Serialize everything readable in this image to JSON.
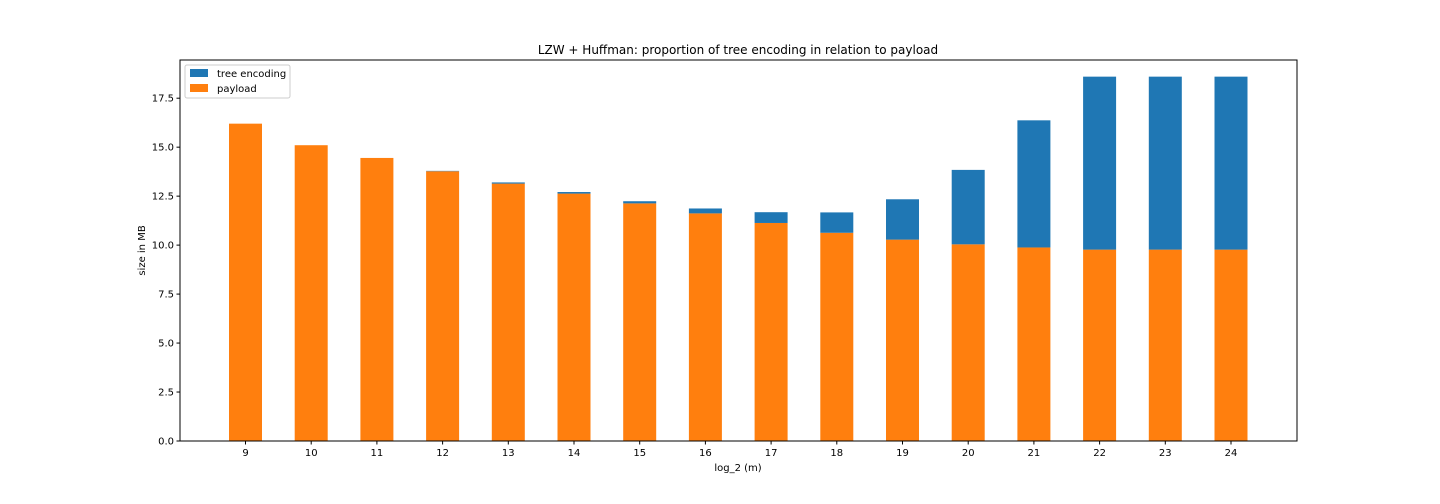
{
  "chart_data": {
    "type": "bar",
    "stacked": true,
    "title": "LZW + Huffman: proportion of tree encoding in relation to payload",
    "xlabel": "log_2 (m)",
    "ylabel": "size in MB",
    "categories": [
      "9",
      "10",
      "11",
      "12",
      "13",
      "14",
      "15",
      "16",
      "17",
      "18",
      "19",
      "20",
      "21",
      "22",
      "23",
      "24"
    ],
    "series": [
      {
        "name": "payload",
        "color": "#ff7f0e",
        "values": [
          16.2,
          15.1,
          14.45,
          13.77,
          13.14,
          12.63,
          12.13,
          11.62,
          11.13,
          10.63,
          10.28,
          10.04,
          9.88,
          9.77,
          9.77,
          9.77
        ]
      },
      {
        "name": "tree encoding",
        "color": "#1f77b4",
        "values": [
          0.0,
          0.0,
          0.0,
          0.02,
          0.06,
          0.08,
          0.11,
          0.25,
          0.55,
          1.04,
          2.06,
          3.8,
          6.49,
          8.83,
          8.83,
          8.83
        ]
      }
    ],
    "yticks": [
      "0.0",
      "2.5",
      "5.0",
      "7.5",
      "10.0",
      "12.5",
      "15.0",
      "17.5"
    ],
    "ylim": [
      0,
      19.45
    ],
    "grid": false,
    "legend": {
      "position": "top-left",
      "entries": [
        "tree encoding",
        "payload"
      ]
    }
  }
}
